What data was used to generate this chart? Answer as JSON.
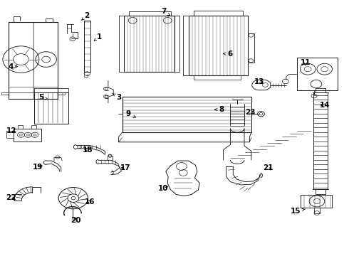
{
  "bg_color": "#ffffff",
  "line_color": "#1a1a1a",
  "label_color": "#000000",
  "font_size": 7.5,
  "label_positions": {
    "1": [
      0.285,
      0.855,
      0.268,
      0.84
    ],
    "2": [
      0.248,
      0.94,
      0.233,
      0.92
    ],
    "3": [
      0.34,
      0.62,
      0.322,
      0.635
    ],
    "4": [
      0.03,
      0.74,
      0.052,
      0.74
    ],
    "5": [
      0.118,
      0.62,
      0.138,
      0.612
    ],
    "6": [
      0.66,
      0.79,
      0.638,
      0.79
    ],
    "7": [
      0.47,
      0.955,
      0.488,
      0.938
    ],
    "8": [
      0.634,
      0.572,
      0.614,
      0.572
    ],
    "9": [
      0.368,
      0.555,
      0.39,
      0.54
    ],
    "10": [
      0.468,
      0.265,
      0.488,
      0.275
    ],
    "11": [
      0.875,
      0.755,
      0.875,
      0.735
    ],
    "12": [
      0.032,
      0.49,
      0.052,
      0.48
    ],
    "13": [
      0.742,
      0.68,
      0.76,
      0.67
    ],
    "14": [
      0.93,
      0.59,
      0.91,
      0.59
    ],
    "15": [
      0.848,
      0.175,
      0.88,
      0.185
    ],
    "16": [
      0.258,
      0.21,
      0.244,
      0.222
    ],
    "17": [
      0.36,
      0.345,
      0.34,
      0.345
    ],
    "18": [
      0.252,
      0.415,
      0.235,
      0.415
    ],
    "19": [
      0.108,
      0.348,
      0.128,
      0.355
    ],
    "20": [
      0.218,
      0.14,
      0.218,
      0.158
    ],
    "21": [
      0.768,
      0.345,
      0.782,
      0.33
    ],
    "22": [
      0.032,
      0.228,
      0.048,
      0.218
    ],
    "23": [
      0.718,
      0.56,
      0.732,
      0.548
    ]
  }
}
